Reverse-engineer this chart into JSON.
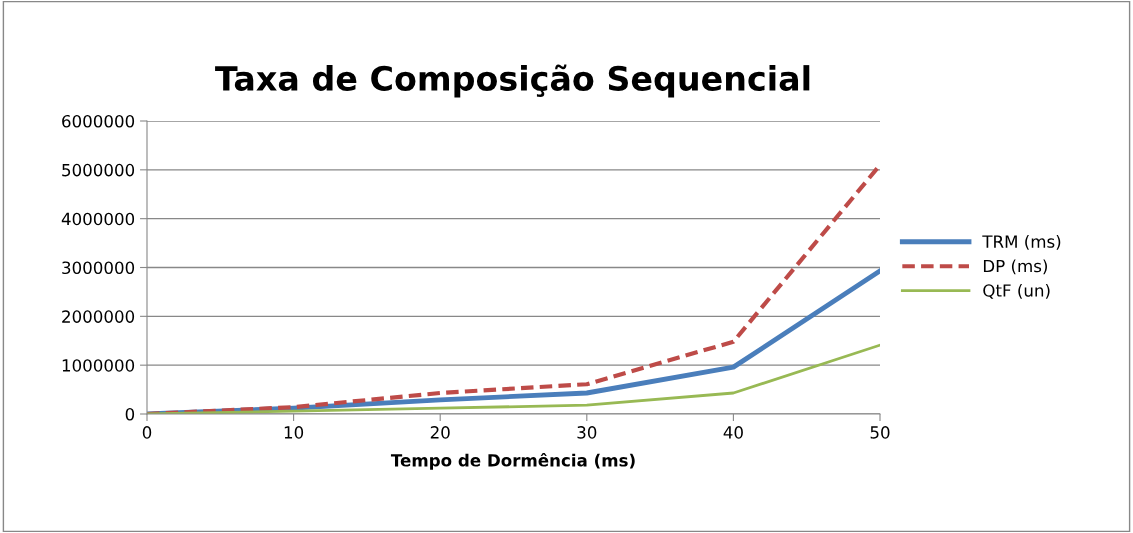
{
  "chart_data": {
    "type": "line",
    "title": "Taxa de Composição Sequencial",
    "xlabel": "Tempo de Dormência (ms)",
    "x": [
      0,
      10,
      20,
      30,
      40,
      50
    ],
    "series": [
      {
        "name": "TRM (ms)",
        "color": "#4a7ebb",
        "line_style": "solid",
        "values": [
          0,
          120000,
          290000,
          430000,
          960000,
          2930000
        ]
      },
      {
        "name": "DP (ms)",
        "color": "#be4b48",
        "line_style": "dashed",
        "values": [
          0,
          140000,
          430000,
          610000,
          1480000,
          5100000
        ]
      },
      {
        "name": "QtF (un)",
        "color": "#98b954",
        "line_style": "solid",
        "values": [
          0,
          60000,
          120000,
          180000,
          430000,
          1410000
        ]
      }
    ],
    "xlim": [
      0,
      50
    ],
    "xticks": [
      0,
      10,
      20,
      30,
      40,
      50
    ],
    "ylim": [
      0,
      6000000
    ],
    "yticks": [
      0,
      1000000,
      2000000,
      3000000,
      4000000,
      5000000,
      6000000
    ],
    "grid": "y",
    "legend": "right",
    "marker": "none"
  }
}
